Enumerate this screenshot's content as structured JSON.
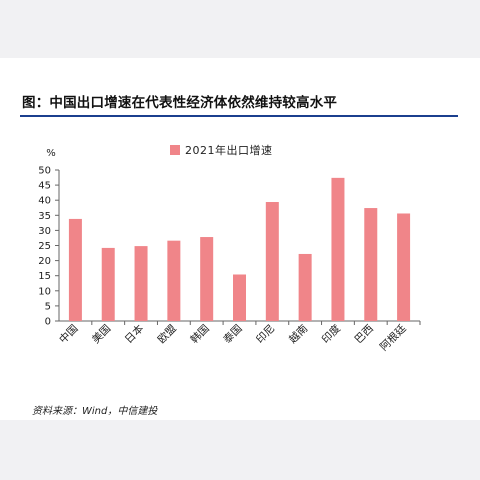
{
  "title": "图：中国出口增速在代表性经济体依然维持较高水平",
  "source": "资料来源：Wind，中信建投",
  "colors": {
    "bar": "#f08589",
    "title_rule": "#1b3f8e",
    "axis": "#666666",
    "page_bg": "#f1f1f3",
    "card_bg": "#ffffff"
  },
  "chart_data": {
    "type": "bar",
    "unit_label": "%",
    "ylim": [
      0,
      50
    ],
    "yticks": [
      0,
      5,
      10,
      15,
      20,
      25,
      30,
      35,
      40,
      45,
      50
    ],
    "grid": false,
    "legend_position": "top-center",
    "categories": [
      "中国",
      "美国",
      "日本",
      "欧盟",
      "韩国",
      "泰国",
      "印尼",
      "越南",
      "印度",
      "巴西",
      "阿根廷"
    ],
    "series": [
      {
        "name": "2021年出口增速",
        "values": [
          33.8,
          24.2,
          24.8,
          26.6,
          27.8,
          15.4,
          39.4,
          22.2,
          47.4,
          37.4,
          35.6
        ]
      }
    ]
  }
}
